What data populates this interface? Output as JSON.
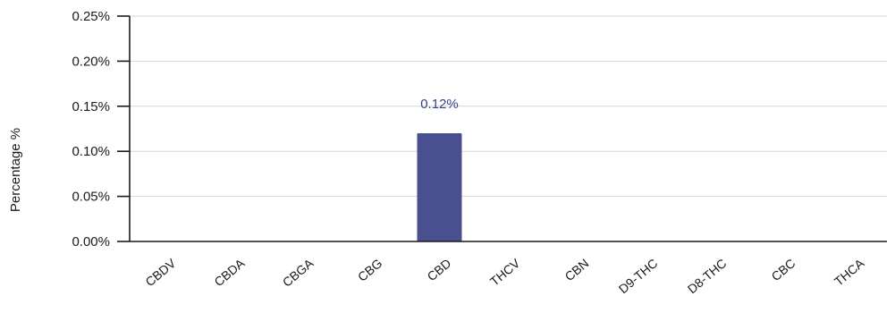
{
  "chart_data": {
    "type": "bar",
    "title": "",
    "xlabel": "",
    "ylabel": "Percentage %",
    "ylim": [
      0,
      0.25
    ],
    "y_ticks": [
      "0.00%",
      "0.05%",
      "0.10%",
      "0.15%",
      "0.20%",
      "0.25%"
    ],
    "y_tick_values": [
      0,
      0.05,
      0.1,
      0.15,
      0.2,
      0.25
    ],
    "categories": [
      "CBDV",
      "CBDA",
      "CBGA",
      "CBG",
      "CBD",
      "THCV",
      "CBN",
      "D9-THC",
      "D8-THC",
      "CBC",
      "THCA"
    ],
    "values": [
      0,
      0,
      0,
      0,
      0.12,
      0,
      0,
      0,
      0,
      0,
      0
    ],
    "data_labels": [
      "",
      "",
      "",
      "",
      "0.12%",
      "",
      "",
      "",
      "",
      "",
      ""
    ],
    "grid": true,
    "legend": "none",
    "bar_color": "#4a4f8f",
    "label_color": "#3a3f8a"
  }
}
